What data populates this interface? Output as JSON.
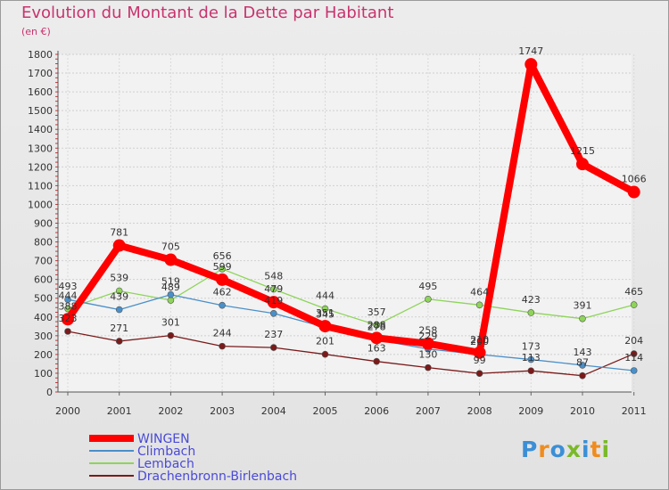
{
  "title": "Evolution du Montant de la Dette par Habitant",
  "subtitle": "(en €)",
  "logo": {
    "text": "Proxiti",
    "letter_colors": [
      "#3b8fd6",
      "#f08c1e",
      "#3b8fd6",
      "#7ab928",
      "#3b8fd6",
      "#f08c1e",
      "#7ab928"
    ]
  },
  "chart_data": {
    "type": "line",
    "x": [
      "2000",
      "2001",
      "2002",
      "2003",
      "2004",
      "2005",
      "2006",
      "2007",
      "2008",
      "2009",
      "2010",
      "2011"
    ],
    "ylim": [
      0,
      1800
    ],
    "yticks": [
      "0",
      "100",
      "200",
      "300",
      "400",
      "500",
      "600",
      "700",
      "800",
      "900",
      "1000",
      "1100",
      "1200",
      "1300",
      "1400",
      "1500",
      "1600",
      "1700",
      "1800"
    ],
    "grid": true,
    "legend_position": "bottom-left",
    "series": [
      {
        "name": "WINGEN",
        "color": "#ff0000",
        "values": [
          388,
          781,
          705,
          599,
          479,
          351,
          288,
          258,
          210,
          1747,
          1215,
          1066
        ]
      },
      {
        "name": "Climbach",
        "color": "#4a8fc8",
        "values": [
          493,
          439,
          519,
          462,
          419,
          345,
          278,
          229,
          200,
          173,
          143,
          114
        ]
      },
      {
        "name": "Lembach",
        "color": "#8ed45a",
        "values": [
          444,
          539,
          489,
          656,
          548,
          444,
          357,
          495,
          464,
          423,
          391,
          465
        ]
      },
      {
        "name": "Drachenbronn-Birlenbach",
        "color": "#7a1a1a",
        "values": [
          323,
          271,
          301,
          244,
          237,
          201,
          163,
          130,
          99,
          113,
          87,
          204
        ]
      }
    ]
  }
}
